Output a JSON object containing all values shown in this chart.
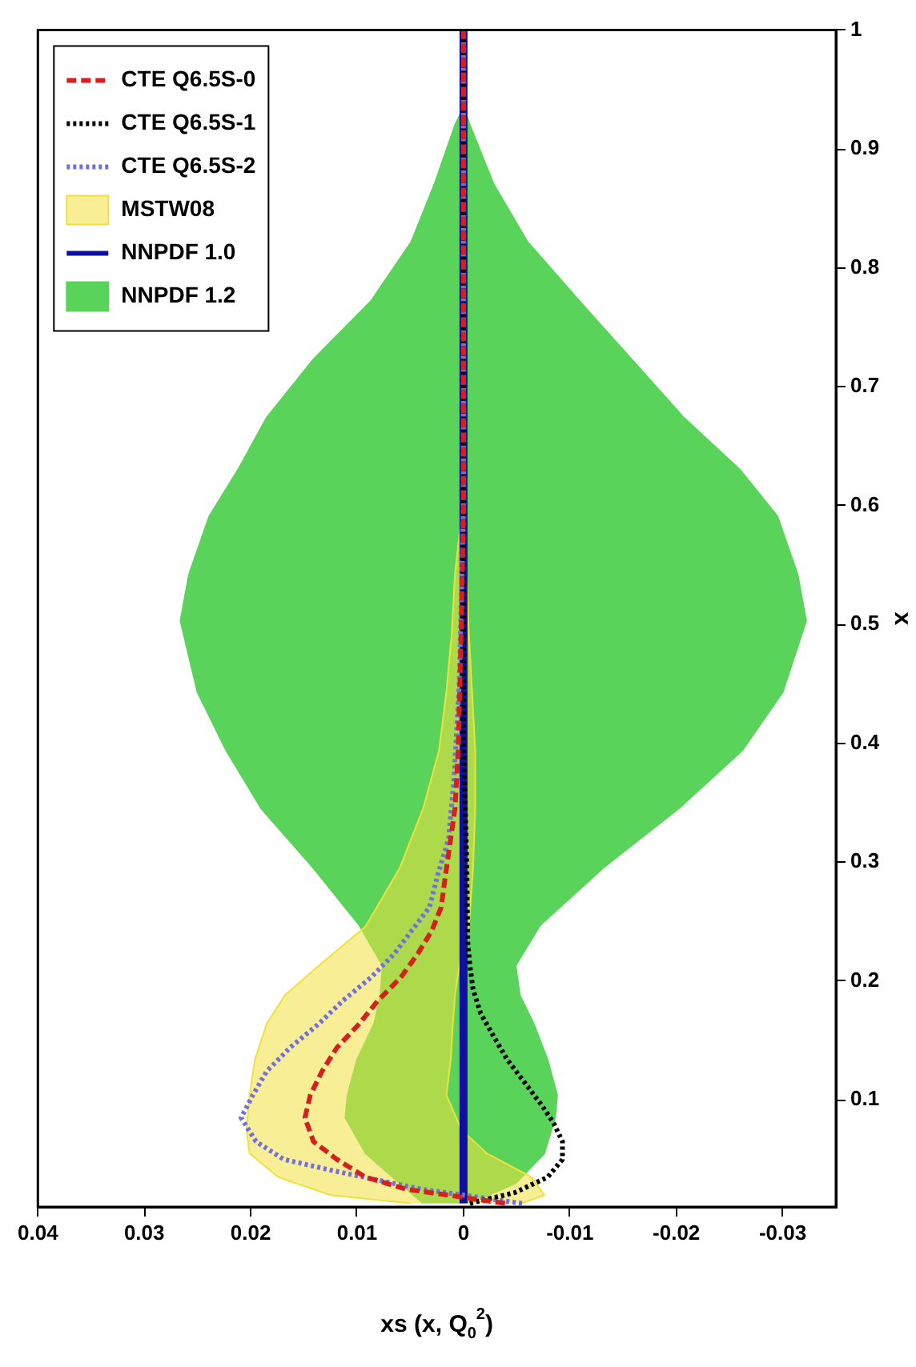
{
  "chart_data": {
    "type": "line",
    "xlabel": "xs (x, Q$_{0}$$^{2}$)",
    "ylabel": "x",
    "xlim": [
      0.04,
      -0.035
    ],
    "xticks": [
      0.04,
      0.03,
      0.02,
      0.01,
      0,
      -0.01,
      -0.02,
      -0.03
    ],
    "ylim": [
      0.01,
      1
    ],
    "yticks": [
      0.1,
      0.2,
      0.3,
      0.4,
      0.5,
      0.6,
      0.7,
      0.8,
      0.9,
      1
    ],
    "grid": false,
    "legend": "top left",
    "series": [
      {
        "name": "CTE Q6.5S-0",
        "line_style": "dashed",
        "color": "#d62020",
        "values": [
          0.013,
          0.025,
          0.035,
          0.05,
          0.065,
          0.085,
          0.104,
          0.124,
          0.144,
          0.164,
          0.183,
          0.203,
          0.223,
          0.242,
          0.262,
          0.295,
          0.345,
          0.394,
          0.5,
          0.6,
          1
        ],
        "x": [
          -0.0039,
          0.0054,
          0.0092,
          0.0119,
          0.0141,
          0.0149,
          0.0144,
          0.0133,
          0.0119,
          0.0098,
          0.0081,
          0.0059,
          0.0043,
          0.003,
          0.0021,
          0.0016,
          0.0008,
          0.0005,
          0.0002,
          0,
          0
        ]
      },
      {
        "name": "CTE Q6.5S-1",
        "line_style": "dotted",
        "color": "#000000",
        "values": [
          0.013,
          0.022,
          0.035,
          0.05,
          0.065,
          0.08,
          0.095,
          0.114,
          0.134,
          0.154,
          0.173,
          0.193,
          0.213,
          0.233,
          0.3,
          0.4,
          1
        ],
        "x": [
          -0.0006,
          -0.0048,
          -0.0079,
          -0.0093,
          -0.0093,
          -0.0085,
          -0.0074,
          -0.0058,
          -0.0041,
          -0.0028,
          -0.0016,
          -0.0009,
          -0.0006,
          -0.0004,
          -0.0003,
          0,
          0
        ]
      },
      {
        "name": "CTE Q6.5S-2",
        "line_style": "dotted",
        "color": "#7070e0",
        "values": [
          0.013,
          0.025,
          0.04,
          0.05,
          0.065,
          0.085,
          0.104,
          0.124,
          0.144,
          0.164,
          0.183,
          0.203,
          0.223,
          0.242,
          0.262,
          0.29,
          0.32,
          0.37,
          0.45,
          0.6,
          1
        ],
        "x": [
          -0.0055,
          0.004,
          0.012,
          0.0169,
          0.0195,
          0.0209,
          0.0198,
          0.0185,
          0.0163,
          0.0136,
          0.0114,
          0.0087,
          0.0065,
          0.0049,
          0.0032,
          0.0024,
          0.0014,
          0.0009,
          0.0004,
          0,
          0
        ]
      },
      {
        "name": "MSTW08",
        "type": "area",
        "color": "#f0e040",
        "x": [
          0.0049,
          0.0125,
          0.0174,
          0.0201,
          0.0204,
          0.0201,
          0.0196,
          0.0185,
          0.0168,
          0.0136,
          0.0092,
          0.006,
          0.0038,
          0.0023,
          0.0016,
          0.0011,
          0.0008,
          0.0002,
          0,
          0,
          0,
          0,
          -0.0003,
          -0.0005,
          -0.0008,
          -0.0011,
          -0.0011,
          -0.0009,
          -0.0005,
          0.0004,
          0.0008,
          0.001,
          0.0012,
          0.0016,
          0.0002,
          -0.0022,
          -0.0064,
          -0.0076,
          -0.0055
        ],
        "values": [
          0.013,
          0.02,
          0.035,
          0.055,
          0.075,
          0.104,
          0.134,
          0.164,
          0.188,
          0.213,
          0.246,
          0.295,
          0.345,
          0.394,
          0.444,
          0.493,
          0.543,
          0.59,
          0.62,
          1,
          0.62,
          0.59,
          0.543,
          0.493,
          0.444,
          0.394,
          0.345,
          0.295,
          0.246,
          0.213,
          0.188,
          0.164,
          0.134,
          0.104,
          0.075,
          0.055,
          0.035,
          0.02,
          0.013
        ]
      },
      {
        "name": "NNPDF 1.0",
        "line_style": "solid",
        "color": "#1010a0",
        "values": [
          0.013,
          1
        ],
        "x": [
          0,
          0
        ]
      },
      {
        "name": "NNPDF 1.2",
        "type": "area",
        "color": "#5ad35a",
        "x": [
          0.0038,
          0.006,
          0.0092,
          0.0111,
          0.0109,
          0.01,
          0.0084,
          0.0078,
          0.0076,
          0.0098,
          0.0141,
          0.019,
          0.0223,
          0.025,
          0.0266,
          0.0258,
          0.0239,
          0.0212,
          0.0185,
          0.0141,
          0.0087,
          0.0049,
          0.0027,
          0.0008,
          0,
          -0.0006,
          -0.0028,
          -0.006,
          -0.0109,
          -0.0158,
          -0.0207,
          -0.026,
          -0.0295,
          -0.0314,
          -0.0322,
          -0.03,
          -0.0262,
          -0.0202,
          -0.0131,
          -0.0072,
          -0.0049,
          -0.0053,
          -0.0066,
          -0.0079,
          -0.0088,
          -0.0086,
          -0.0076,
          -0.0049,
          -0.0006
        ],
        "values": [
          0.013,
          0.03,
          0.055,
          0.085,
          0.104,
          0.134,
          0.164,
          0.188,
          0.213,
          0.247,
          0.295,
          0.345,
          0.394,
          0.443,
          0.503,
          0.542,
          0.591,
          0.63,
          0.674,
          0.723,
          0.772,
          0.822,
          0.871,
          0.92,
          0.935,
          0.92,
          0.871,
          0.822,
          0.772,
          0.723,
          0.674,
          0.63,
          0.591,
          0.542,
          0.503,
          0.443,
          0.394,
          0.345,
          0.295,
          0.247,
          0.213,
          0.188,
          0.164,
          0.134,
          0.104,
          0.085,
          0.055,
          0.03,
          0.013
        ]
      }
    ]
  }
}
